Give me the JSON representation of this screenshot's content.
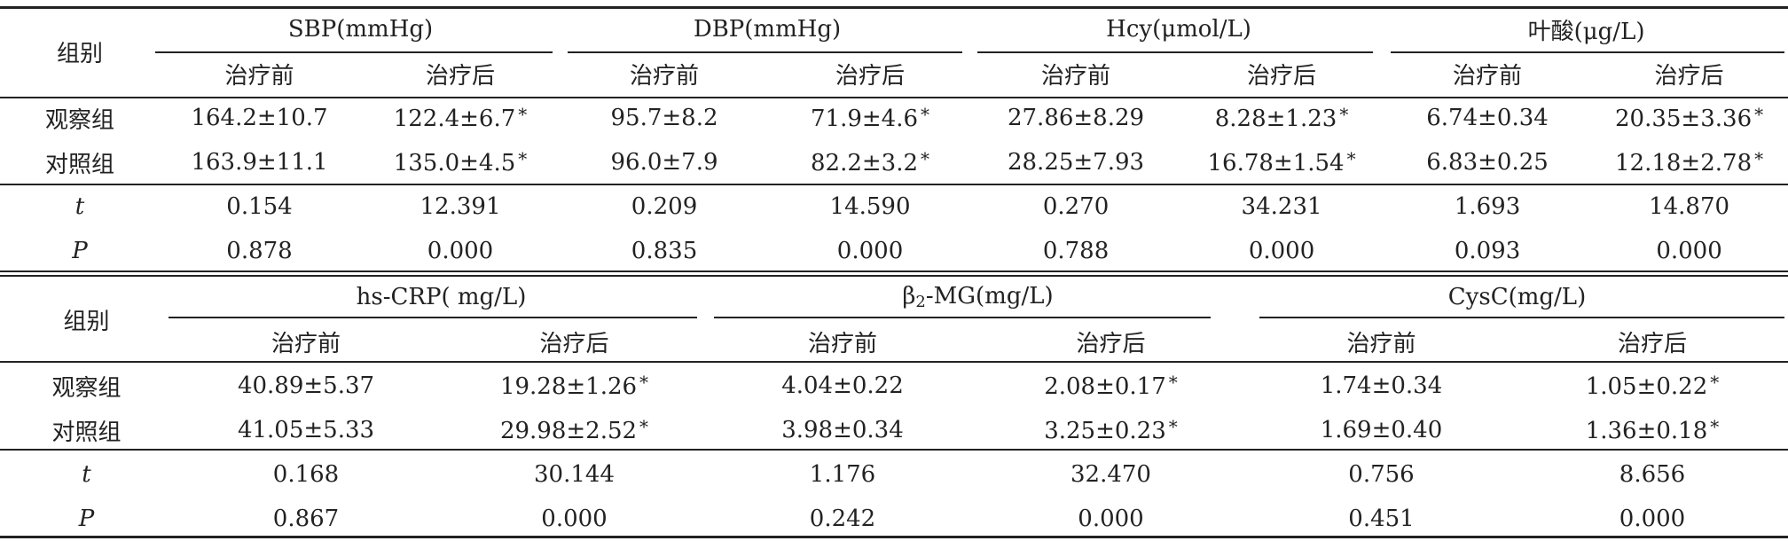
{
  "table1": {
    "group_header": "组别",
    "col_groups": [
      "SBP(mmHg)",
      "DBP(mmHg)",
      "Hcy(μmol/L)",
      "叶酸(μg/L)"
    ],
    "sub_headers": [
      "治疗前",
      "治疗后",
      "治疗前",
      "治疗后",
      "治疗前",
      "治疗后",
      "治疗前",
      "治疗后"
    ],
    "rows": [
      {
        "label": "观察组",
        "cells": [
          "164.2±10.7",
          "122.4±6.7",
          "95.7±8.2",
          "71.9±4.6",
          "27.86±8.29",
          "8.28±1.23",
          "6.74±0.34",
          "20.35±3.36"
        ]
      },
      {
        "label": "对照组",
        "cells": [
          "163.9±11.1",
          "135.0±4.5",
          "96.0±7.9",
          "82.2±3.2",
          "28.25±7.93",
          "16.78±1.54",
          "6.83±0.25",
          "12.18±2.78"
        ]
      },
      {
        "label": "t",
        "cells": [
          "0.154",
          "12.391",
          "0.209",
          "14.590",
          "0.270",
          "34.231",
          "1.693",
          "14.870"
        ]
      },
      {
        "label": "P",
        "cells": [
          "0.878",
          "0.000",
          "0.835",
          "0.000",
          "0.788",
          "0.000",
          "0.093",
          "0.000"
        ]
      }
    ],
    "star": "*"
  },
  "table2": {
    "group_header": "组别",
    "col_groups": [
      "hs-CRP( mg/L)",
      "-MG(mg/L)",
      "CysC(mg/L)"
    ],
    "beta": "β",
    "beta_sub": "2",
    "sub_headers": [
      "治疗前",
      "治疗后",
      "治疗前",
      "治疗后",
      "治疗前",
      "治疗后"
    ],
    "rows": [
      {
        "label": "观察组",
        "cells": [
          "40.89±5.37",
          "19.28±1.26",
          "4.04±0.22",
          "2.08±0.17",
          "1.74±0.34",
          "1.05±0.22"
        ]
      },
      {
        "label": "对照组",
        "cells": [
          "41.05±5.33",
          "29.98±2.52",
          "3.98±0.34",
          "3.25±0.23",
          "1.69±0.40",
          "1.36±0.18"
        ]
      },
      {
        "label": "t",
        "cells": [
          "0.168",
          "30.144",
          "1.176",
          "32.470",
          "0.756",
          "8.656"
        ]
      },
      {
        "label": "P",
        "cells": [
          "0.867",
          "0.000",
          "0.242",
          "0.000",
          "0.451",
          "0.000"
        ]
      }
    ],
    "star": "*"
  }
}
